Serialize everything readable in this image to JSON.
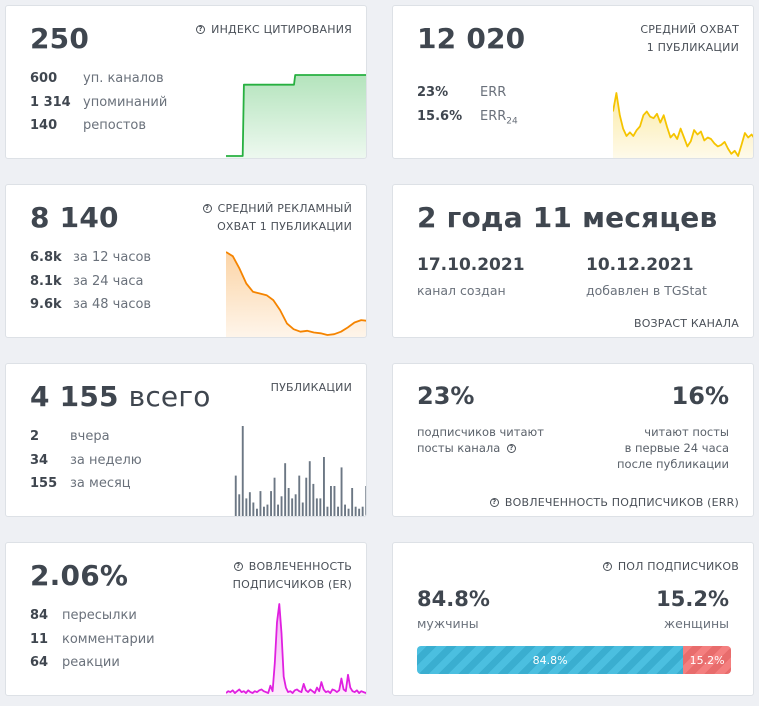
{
  "citation": {
    "value": "250",
    "label": "ИНДЕКС ЦИТИРОВАНИЯ",
    "stats": [
      {
        "num": "600",
        "text": "уп. каналов"
      },
      {
        "num": "1 314",
        "text": "упоминаний"
      },
      {
        "num": "140",
        "text": "репостов"
      }
    ],
    "color": "#27b040",
    "spark": [
      0,
      0,
      0,
      0,
      0,
      0,
      0,
      0,
      0,
      0,
      0,
      0,
      0,
      0,
      0,
      88,
      88,
      88,
      88,
      88,
      88,
      88,
      88,
      88,
      88,
      88,
      88,
      88,
      88,
      88,
      88,
      88,
      88,
      88,
      88,
      88,
      88,
      88,
      88,
      88,
      88,
      88,
      88,
      88,
      88,
      88,
      88,
      88,
      88,
      88,
      88,
      88,
      88,
      88,
      88,
      88,
      88,
      88,
      100,
      100,
      100,
      100,
      100,
      100,
      100,
      100,
      100,
      100,
      100,
      100,
      100,
      100,
      100,
      100,
      100,
      100,
      100,
      100,
      100,
      100,
      100,
      100,
      100,
      100,
      100,
      100,
      100,
      100,
      100,
      100,
      100,
      100,
      100,
      100,
      100,
      100,
      100,
      100,
      100,
      100,
      100,
      100,
      100,
      100,
      100,
      100,
      100,
      100,
      100,
      100,
      100,
      100,
      100,
      100,
      100,
      100,
      100,
      100,
      100,
      100
    ]
  },
  "reach": {
    "value": "12 020",
    "label_lines": [
      "СРЕДНИЙ ОХВАТ",
      "1 ПУБЛИКАЦИИ"
    ],
    "err": [
      {
        "num": "23%",
        "text": "ERR",
        "sub": ""
      },
      {
        "num": "15.6%",
        "text": "ERR",
        "sub": "24"
      }
    ],
    "color": "#f5c400",
    "spark": [
      75,
      100,
      70,
      52,
      42,
      47,
      42,
      50,
      55,
      70,
      75,
      68,
      66,
      72,
      60,
      70,
      54,
      40,
      45,
      38,
      52,
      40,
      28,
      35,
      50,
      44,
      48,
      36,
      40,
      38,
      32,
      28,
      30,
      34,
      25,
      18,
      22,
      15,
      30,
      46,
      40,
      44,
      38
    ]
  },
  "ad_reach": {
    "value": "8 140",
    "label_lines": [
      "СРЕДНИЙ РЕКЛАМНЫЙ",
      "ОХВАТ 1 ПУБЛИКАЦИИ"
    ],
    "stats": [
      {
        "num": "6.8k",
        "text": "за 12 часов"
      },
      {
        "num": "8.1k",
        "text": "за 24 часа"
      },
      {
        "num": "9.6k",
        "text": "за 48 часов"
      }
    ],
    "color": "#f58400",
    "spark": [
      100,
      95,
      80,
      62,
      52,
      50,
      48,
      42,
      30,
      14,
      7,
      4,
      5,
      3,
      2,
      0,
      1,
      4,
      9,
      15,
      18,
      17
    ]
  },
  "age": {
    "value": "2 года 11 месяцев",
    "created_date": "17.10.2021",
    "created_label": "канал создан",
    "added_date": "10.12.2021",
    "added_label": "добавлен в TGStat",
    "label": "ВОЗРАСТ КАНАЛА"
  },
  "publications": {
    "value": "4 155",
    "suffix": "всего",
    "label": "ПУБЛИКАЦИИ",
    "stats": [
      {
        "num": "2",
        "text": "вчера"
      },
      {
        "num": "34",
        "text": "за неделю"
      },
      {
        "num": "155",
        "text": "за месяц"
      }
    ],
    "color": "#6c7784",
    "bars": [
      40,
      22,
      88,
      18,
      24,
      14,
      8,
      25,
      10,
      12,
      25,
      38,
      12,
      20,
      52,
      28,
      18,
      22,
      40,
      14,
      38,
      54,
      32,
      18,
      18,
      58,
      10,
      30,
      30,
      10,
      48,
      12,
      8,
      28,
      10,
      8,
      10,
      30
    ]
  },
  "err_block": {
    "left_pct": "23%",
    "left_lines": [
      "подписчиков читают",
      "посты канала"
    ],
    "right_pct": "16%",
    "right_lines": [
      "читают посты",
      "в первые 24 часа",
      "после публикации"
    ],
    "label": "ВОВЛЕЧЕННОСТЬ ПОДПИСЧИКОВ (ERR)"
  },
  "er_block": {
    "value": "2.06%",
    "label_lines": [
      "ВОВЛЕЧЕННОСТЬ",
      "ПОДПИСЧИКОВ (ER)"
    ],
    "stats": [
      {
        "num": "84",
        "text": "пересылки"
      },
      {
        "num": "11",
        "text": "комментарии"
      },
      {
        "num": "64",
        "text": "реакции"
      }
    ],
    "color": "#e020e0",
    "spark": [
      2,
      4,
      3,
      5,
      2,
      4,
      6,
      3,
      4,
      2,
      5,
      3,
      2,
      4,
      3,
      5,
      6,
      4,
      3,
      2,
      10,
      4,
      35,
      80,
      100,
      68,
      20,
      8,
      3,
      4,
      2,
      5,
      6,
      4,
      3,
      12,
      5,
      3,
      6,
      4,
      2,
      8,
      4,
      14,
      6,
      3,
      4,
      2,
      6,
      5,
      3,
      5,
      18,
      6,
      4,
      22,
      8,
      4,
      3,
      5,
      2,
      4,
      3,
      2,
      4
    ]
  },
  "gender": {
    "label": "ПОЛ ПОДПИСЧИКОВ",
    "male_pct": "84.8%",
    "male_label": "мужчины",
    "female_pct": "15.2%",
    "female_label": "женщины",
    "male_share": 84.8,
    "female_share": 15.2
  }
}
